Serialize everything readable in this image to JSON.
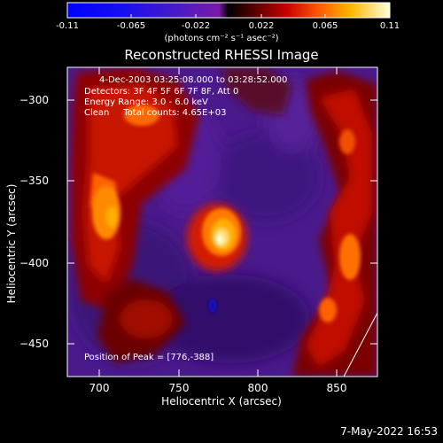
{
  "colorbar": {
    "ticks": [
      "-0.11",
      "-0.065",
      "-0.022",
      "0.022",
      "0.065",
      "0.11"
    ],
    "units": "(photons cm⁻² s⁻¹ asec⁻²)"
  },
  "title": "Reconstructed RHESSI Image",
  "info": {
    "time": "4-Dec-2003 03:25:08.000 to 03:28:52.000",
    "detectors": "Detectors: 3F 4F 5F 6F 7F 8F, Att 0",
    "energy": "Energy Range: 3.0 - 6.0 keV",
    "clean": "Clean     Total counts: 4.65E+03"
  },
  "peak_text": "Position of Peak = [776,-388]",
  "axes": {
    "xlabel": "Heliocentric X (arcsec)",
    "ylabel": "Heliocentric Y (arcsec)",
    "xticks": [
      "700",
      "750",
      "800",
      "850"
    ],
    "yticks": [
      "−300",
      "−350",
      "−400",
      "−450"
    ],
    "xlim": [
      680,
      872
    ],
    "ylim": [
      -472,
      -277
    ]
  },
  "timestamp": "7-May-2022 16:53",
  "colors": {
    "background": "#000000",
    "axes": "#ffffff"
  }
}
